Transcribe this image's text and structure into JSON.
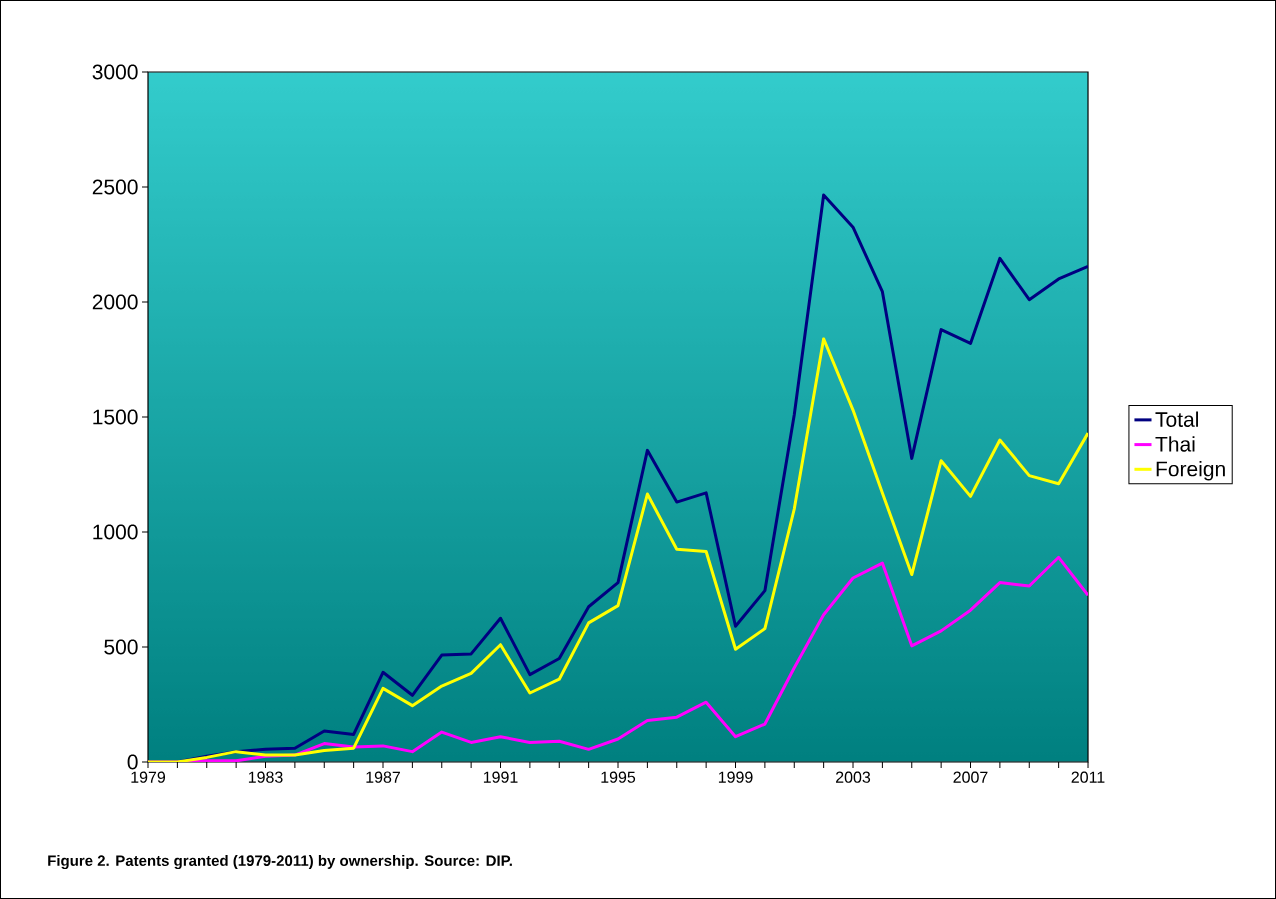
{
  "chart_data": {
    "type": "line",
    "x": [
      1979,
      1980,
      1981,
      1982,
      1983,
      1984,
      1985,
      1986,
      1987,
      1988,
      1989,
      1990,
      1991,
      1992,
      1993,
      1994,
      1995,
      1996,
      1997,
      1998,
      1999,
      2000,
      2001,
      2002,
      2003,
      2004,
      2005,
      2006,
      2007,
      2008,
      2009,
      2010,
      2011
    ],
    "series": [
      {
        "name": "Total",
        "color": "#000080",
        "values": [
          0,
          0,
          25,
          45,
          55,
          60,
          135,
          120,
          390,
          290,
          465,
          470,
          625,
          380,
          450,
          675,
          780,
          1355,
          1130,
          1170,
          590,
          745,
          1510,
          2465,
          2325,
          2045,
          1320,
          1880,
          1820,
          2190,
          2010,
          2100,
          2155
        ]
      },
      {
        "name": "Thai",
        "color": "#ff00ff",
        "values": [
          0,
          0,
          5,
          5,
          25,
          30,
          80,
          65,
          70,
          45,
          130,
          85,
          110,
          85,
          90,
          55,
          100,
          180,
          195,
          260,
          110,
          165,
          410,
          640,
          800,
          865,
          505,
          570,
          660,
          780,
          765,
          890,
          725
        ]
      },
      {
        "name": "Foreign",
        "color": "#ffff00",
        "values": [
          0,
          0,
          20,
          45,
          30,
          30,
          50,
          60,
          320,
          245,
          330,
          385,
          510,
          300,
          360,
          605,
          680,
          1165,
          925,
          915,
          490,
          580,
          1100,
          1840,
          1530,
          1170,
          815,
          1310,
          1155,
          1400,
          1245,
          1210,
          1430
        ]
      }
    ],
    "xlim": [
      1979,
      2011
    ],
    "xticks": [
      {
        "value": 1979,
        "label": "1979"
      },
      {
        "value": 1980,
        "label": null
      },
      {
        "value": 1981,
        "label": null
      },
      {
        "value": 1982,
        "label": null
      },
      {
        "value": 1983,
        "label": "1983"
      },
      {
        "value": 1984,
        "label": null
      },
      {
        "value": 1985,
        "label": null
      },
      {
        "value": 1986,
        "label": null
      },
      {
        "value": 1987,
        "label": "1987"
      },
      {
        "value": 1988,
        "label": null
      },
      {
        "value": 1989,
        "label": null
      },
      {
        "value": 1990,
        "label": null
      },
      {
        "value": 1991,
        "label": "1991"
      },
      {
        "value": 1992,
        "label": null
      },
      {
        "value": 1993,
        "label": null
      },
      {
        "value": 1994,
        "label": null
      },
      {
        "value": 1995,
        "label": "1995"
      },
      {
        "value": 1996,
        "label": null
      },
      {
        "value": 1997,
        "label": null
      },
      {
        "value": 1998,
        "label": null
      },
      {
        "value": 1999,
        "label": "1999"
      },
      {
        "value": 2000,
        "label": null
      },
      {
        "value": 2001,
        "label": null
      },
      {
        "value": 2002,
        "label": null
      },
      {
        "value": 2003,
        "label": "2003"
      },
      {
        "value": 2004,
        "label": null
      },
      {
        "value": 2005,
        "label": null
      },
      {
        "value": 2006,
        "label": null
      },
      {
        "value": 2007,
        "label": "2007"
      },
      {
        "value": 2008,
        "label": null
      },
      {
        "value": 2009,
        "label": null
      },
      {
        "value": 2010,
        "label": null
      },
      {
        "value": 2011,
        "label": "2011"
      }
    ],
    "ylim": [
      0,
      3000
    ],
    "yticks": [
      0,
      500,
      1000,
      1500,
      2000,
      2500,
      3000
    ],
    "grid": false,
    "legend": "right",
    "marker": "none",
    "line_style": "solid",
    "annotations": [
      "**Figure 2. Patents granted (1979-2011) by ownership. Source: DIP.**"
    ]
  }
}
